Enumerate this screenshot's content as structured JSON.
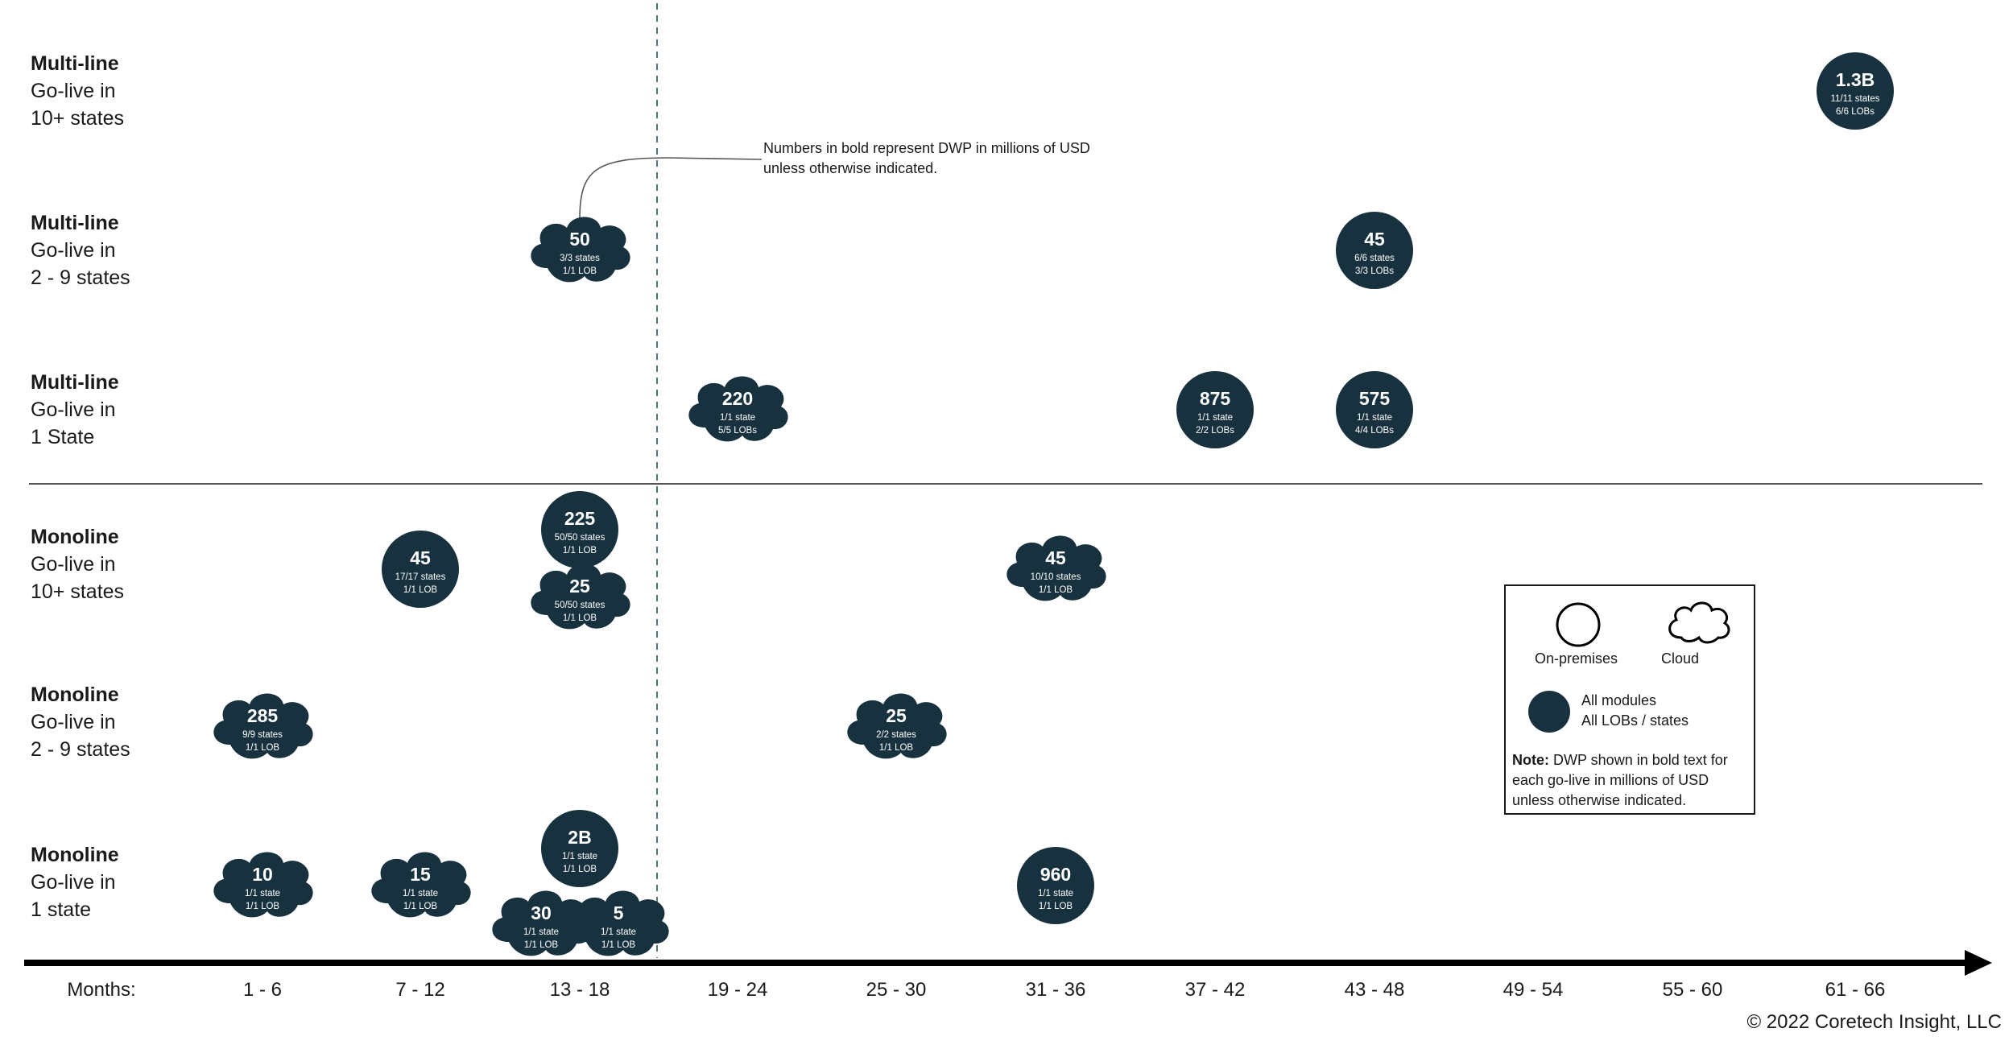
{
  "note": {
    "line1": "Numbers in bold represent DWP in millions of USD",
    "line2": "unless otherwise indicated."
  },
  "rows": [
    {
      "category": "Multi-line",
      "line1": "Go-live in",
      "line2": "10+ states"
    },
    {
      "category": "Multi-line",
      "line1": "Go-live in",
      "line2": "2 - 9 states"
    },
    {
      "category": "Multi-line",
      "line1": "Go-live in",
      "line2": "1 State"
    },
    {
      "category": "Monoline",
      "line1": "Go-live in",
      "line2": "10+ states"
    },
    {
      "category": "Monoline",
      "line1": "Go-live in",
      "line2": "2 - 9 states"
    },
    {
      "category": "Monoline",
      "line1": "Go-live in",
      "line2": "1 state"
    }
  ],
  "axis": {
    "label": "Months:",
    "periods": [
      "1 - 6",
      "7 - 12",
      "13 - 18",
      "19 - 24",
      "25 - 30",
      "31 - 36",
      "37 - 42",
      "43 - 48",
      "49 - 54",
      "55 - 60",
      "61 - 66"
    ]
  },
  "items": [
    {
      "row": 0,
      "period": 10,
      "shape": "circle",
      "value": "1.3B",
      "states": "11/11 states",
      "lobs": "6/6 LOBs"
    },
    {
      "row": 1,
      "period": 2,
      "shape": "cloud",
      "value": "50",
      "states": "3/3 states",
      "lobs": "1/1 LOB"
    },
    {
      "row": 1,
      "period": 7,
      "shape": "circle",
      "value": "45",
      "states": "6/6 states",
      "lobs": "3/3 LOBs"
    },
    {
      "row": 2,
      "period": 3,
      "shape": "cloud",
      "value": "220",
      "states": "1/1 state",
      "lobs": "5/5 LOBs"
    },
    {
      "row": 2,
      "period": 6,
      "shape": "circle",
      "value": "875",
      "states": "1/1 state",
      "lobs": "2/2 LOBs"
    },
    {
      "row": 2,
      "period": 7,
      "shape": "circle",
      "value": "575",
      "states": "1/1 state",
      "lobs": "4/4 LOBs"
    },
    {
      "row": 3,
      "period": 1,
      "shape": "circle",
      "value": "45",
      "states": "17/17 states",
      "lobs": "1/1 LOB"
    },
    {
      "row": 3,
      "period": 2,
      "shape": "circle",
      "value": "225",
      "states": "50/50 states",
      "lobs": "1/1 LOB"
    },
    {
      "row": 3,
      "period": 2,
      "shape": "cloud",
      "value": "25",
      "states": "50/50 states",
      "lobs": "1/1 LOB"
    },
    {
      "row": 3,
      "period": 5,
      "shape": "cloud",
      "value": "45",
      "states": "10/10 states",
      "lobs": "1/1 LOB"
    },
    {
      "row": 4,
      "period": 0,
      "shape": "cloud",
      "value": "285",
      "states": "9/9 states",
      "lobs": "1/1 LOB"
    },
    {
      "row": 4,
      "period": 4,
      "shape": "cloud",
      "value": "25",
      "states": "2/2 states",
      "lobs": "1/1 LOB"
    },
    {
      "row": 5,
      "period": 0,
      "shape": "cloud",
      "value": "10",
      "states": "1/1 state",
      "lobs": "1/1 LOB"
    },
    {
      "row": 5,
      "period": 1,
      "shape": "cloud",
      "value": "15",
      "states": "1/1 state",
      "lobs": "1/1 LOB"
    },
    {
      "row": 5,
      "period": 2,
      "shape": "circle",
      "value": "2B",
      "states": "1/1 state",
      "lobs": "1/1 LOB"
    },
    {
      "row": 5,
      "period": 2,
      "shape": "cloud",
      "value": "30",
      "states": "1/1 state",
      "lobs": "1/1 LOB"
    },
    {
      "row": 5,
      "period": 2,
      "shape": "cloud",
      "value": "5",
      "states": "1/1 state",
      "lobs": "1/1 LOB"
    },
    {
      "row": 5,
      "period": 5,
      "shape": "circle",
      "value": "960",
      "states": "1/1 state",
      "lobs": "1/1 LOB"
    }
  ],
  "legend": {
    "on_premises": "On-premises",
    "cloud": "Cloud",
    "all_modules": "All modules",
    "all_lobs": "All LOBs / states",
    "note_bold": "Note:",
    "note_text": " DWP shown in bold text for each go-live in millions of USD unless otherwise indicated."
  },
  "copyright": "© 2022 Coretech Insight, LLC",
  "colors": {
    "fill": "#17313f",
    "line": "#1a1a1a",
    "dashed": "#4a7a7a"
  }
}
